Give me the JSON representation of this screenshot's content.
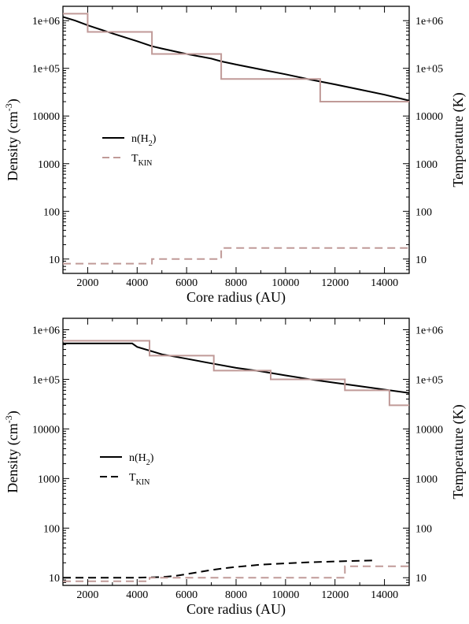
{
  "chart_data": [
    {
      "type": "line",
      "xlabel": "Core radius (AU)",
      "ylabel": "Density (cm",
      "ylabel_sup": "-3",
      "ylabel_close": ")",
      "y2label": "Temperature (K)",
      "x_ticks": [
        "2000",
        "4000",
        "6000",
        "8000",
        "10000",
        "12000",
        "14000"
      ],
      "x_tick_values": [
        2000,
        4000,
        6000,
        8000,
        10000,
        12000,
        14000
      ],
      "y_ticks": [
        "10",
        "100",
        "1000",
        "10000",
        "1e+05",
        "1e+06"
      ],
      "y_tick_values": [
        10,
        100,
        1000,
        10000,
        100000,
        1000000
      ],
      "xlim": [
        1000,
        15000
      ],
      "ylim": [
        5,
        2000000
      ],
      "yscale": "log",
      "grid": false,
      "legend_position": "center-left",
      "legend": [
        {
          "main": "n(H",
          "sub": "2",
          "close": ")",
          "style": "solid",
          "color": "#000000"
        },
        {
          "main": "T",
          "sub": "KIN",
          "close": "",
          "style": "dashed",
          "color": "#c09a98"
        }
      ],
      "series": [
        {
          "id": "density",
          "style": "solid",
          "color": "#000000",
          "x": [
            1000,
            1500,
            2000,
            3000,
            4000,
            4600,
            5000,
            6000,
            7000,
            7400,
            8000,
            9000,
            10000,
            11000,
            12000,
            13000,
            14000,
            15000
          ],
          "y": [
            1200000,
            1000000,
            800000,
            540000,
            370000,
            290000,
            260000,
            200000,
            160000,
            140000,
            120000,
            95000,
            75000,
            58000,
            46000,
            36000,
            28000,
            21000
          ]
        },
        {
          "id": "density-steps",
          "style": "steps",
          "color": "#c09a98",
          "x": [
            1000,
            2000,
            2000,
            4600,
            4600,
            7400,
            7400,
            11400,
            11400,
            15000
          ],
          "y": [
            1400000,
            1400000,
            580000,
            580000,
            200000,
            200000,
            60000,
            60000,
            20000,
            20000
          ]
        },
        {
          "id": "temperature",
          "style": "dashed-steps",
          "color": "#c09a98",
          "x": [
            1000,
            4600,
            4600,
            7400,
            7400,
            15000
          ],
          "y": [
            8,
            8,
            10,
            10,
            17,
            17
          ]
        }
      ]
    },
    {
      "type": "line",
      "xlabel": "Core radius (AU)",
      "ylabel": "Density (cm",
      "ylabel_sup": "-3",
      "ylabel_close": ")",
      "y2label": "Temperature (K)",
      "x_ticks": [
        "2000",
        "4000",
        "6000",
        "8000",
        "10000",
        "12000",
        "14000"
      ],
      "x_tick_values": [
        2000,
        4000,
        6000,
        8000,
        10000,
        12000,
        14000
      ],
      "y_ticks": [
        "10",
        "100",
        "1000",
        "10000",
        "1e+05",
        "1e+06"
      ],
      "y_tick_values": [
        10,
        100,
        1000,
        10000,
        100000,
        1000000
      ],
      "xlim": [
        1000,
        15000
      ],
      "ylim": [
        7,
        1700000
      ],
      "yscale": "log",
      "grid": false,
      "legend_position": "center-left",
      "legend": [
        {
          "main": "n(H",
          "sub": "2",
          "close": ")",
          "style": "solid",
          "color": "#000000"
        },
        {
          "main": "T",
          "sub": "KIN",
          "close": "",
          "style": "dashed",
          "color": "#000000"
        }
      ],
      "series": [
        {
          "id": "density",
          "style": "solid",
          "color": "#000000",
          "x": [
            1000,
            2000,
            3000,
            3800,
            4000,
            4500,
            5000,
            6000,
            7000,
            8000,
            9000,
            10000,
            11000,
            12000,
            13000,
            14000,
            15000
          ],
          "y": [
            530000,
            530000,
            530000,
            530000,
            450000,
            380000,
            320000,
            260000,
            210000,
            170000,
            145000,
            120000,
            100000,
            85000,
            73000,
            62000,
            53000
          ]
        },
        {
          "id": "density-steps",
          "style": "steps",
          "color": "#c09a98",
          "x": [
            1000,
            4500,
            4500,
            7100,
            7100,
            9400,
            9400,
            12400,
            12400,
            14200,
            14200,
            15000
          ],
          "y": [
            600000,
            600000,
            300000,
            300000,
            150000,
            150000,
            100000,
            100000,
            60000,
            60000,
            30000,
            30000
          ]
        },
        {
          "id": "temperature-model",
          "style": "dashed",
          "color": "#000000",
          "x": [
            1000,
            2000,
            3000,
            4000,
            5000,
            5500,
            6000,
            6500,
            7000,
            7500,
            8000,
            9000,
            10000,
            11000,
            12000,
            13000,
            13600
          ],
          "y": [
            10,
            10,
            10,
            10,
            10.3,
            10.8,
            11.8,
            13,
            14.3,
            15.5,
            16.5,
            18.3,
            19.5,
            20.5,
            21.3,
            22,
            22.3
          ]
        },
        {
          "id": "temperature-steps",
          "style": "dashed-steps",
          "color": "#c09a98",
          "x": [
            1000,
            4500,
            4500,
            12400,
            12400,
            15000
          ],
          "y": [
            8.5,
            8.5,
            10,
            10,
            17,
            17
          ]
        }
      ]
    }
  ]
}
